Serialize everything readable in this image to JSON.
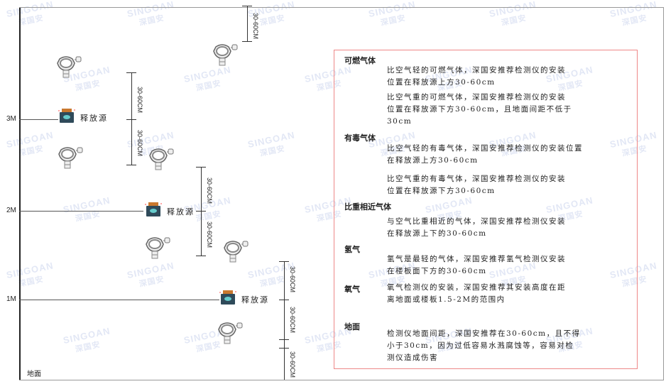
{
  "watermark": {
    "brand": "SINGOAN",
    "cn": "深国安"
  },
  "levels": [
    {
      "label": "3M"
    },
    {
      "label": "2M"
    },
    {
      "label": "1M"
    }
  ],
  "ground_label": "地面",
  "source_label": "释放源",
  "dimension_label": "30-60CM",
  "colors": {
    "frame": "#333333",
    "panel_border": "#ee8888",
    "source_body": "#2f4a5a",
    "source_cap": "#c9782e",
    "watermark": "#96aadc"
  },
  "panel": {
    "sections": [
      {
        "title": "可燃气体",
        "paragraphs": [
          "比空气轻的可燃气体，深国安推荐检测仪的安装\n位置在释放源上方30-60cm",
          "比空气重的可燃气体，深国安推荐检测仪的安装\n位置在释放源下方30-60cm，且地面间距不低于\n30cm"
        ]
      },
      {
        "title": "有毒气体",
        "paragraphs": [
          "比空气轻的有毒气体，深国安推荐检测仪的安装位置\n在释放源上方30-60cm",
          "比空气重的有毒气体，深国安推荐检测仪的安装\n位置在释放源下方30-60cm"
        ]
      },
      {
        "title": "比重相近气体",
        "paragraphs": [
          "与空气比重相近的气体，深国安推荐检测仪安装\n在释放源上下的30-60cm"
        ]
      },
      {
        "title": "氢气",
        "paragraphs": [
          "氢气是最轻的气体，深国安推荐氢气检测仪安装\n在楼板面下方的30-60cm"
        ]
      },
      {
        "title": "氧气",
        "paragraphs": [
          "氧气检测仪的安装，深国安推荐其安装高度在距\n离地面或楼板1.5-2M的范围内"
        ]
      },
      {
        "title": "地面",
        "paragraphs": [
          "检测仪地面间距，深国安推荐在30-60cm，且不得\n小于30cm，因为过低容易水溅腐蚀等，容易对检\n测仪造成伤害"
        ]
      }
    ]
  }
}
